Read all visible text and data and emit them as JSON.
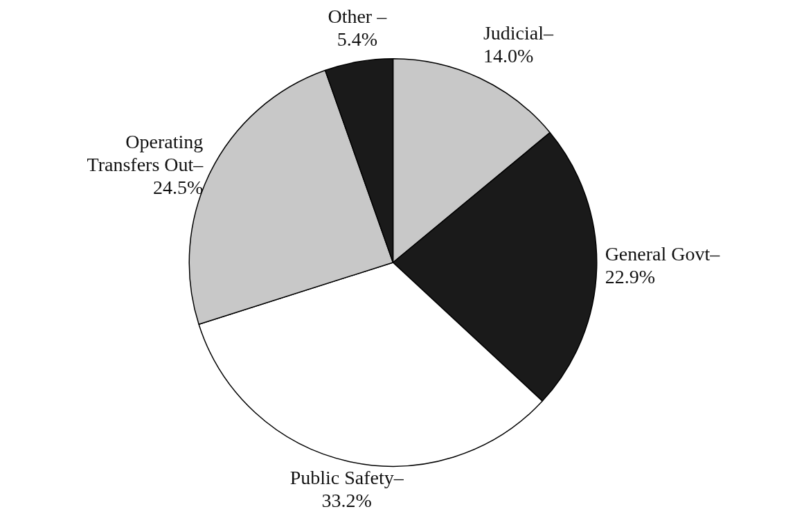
{
  "chart_data": {
    "type": "pie",
    "categories": [
      "Judicial–",
      "General Govt–",
      "Public Safety–",
      "Operating Transfers Out–",
      "Other –"
    ],
    "values": [
      14.0,
      22.9,
      33.2,
      24.5,
      5.4
    ],
    "value_labels": [
      "14.0%",
      "22.9%",
      "33.2%",
      "24.5%",
      "5.4%"
    ],
    "colors": [
      "#c8c8c8",
      "#1a1a1a",
      "#ffffff",
      "#c8c8c8",
      "#1a1a1a"
    ]
  }
}
